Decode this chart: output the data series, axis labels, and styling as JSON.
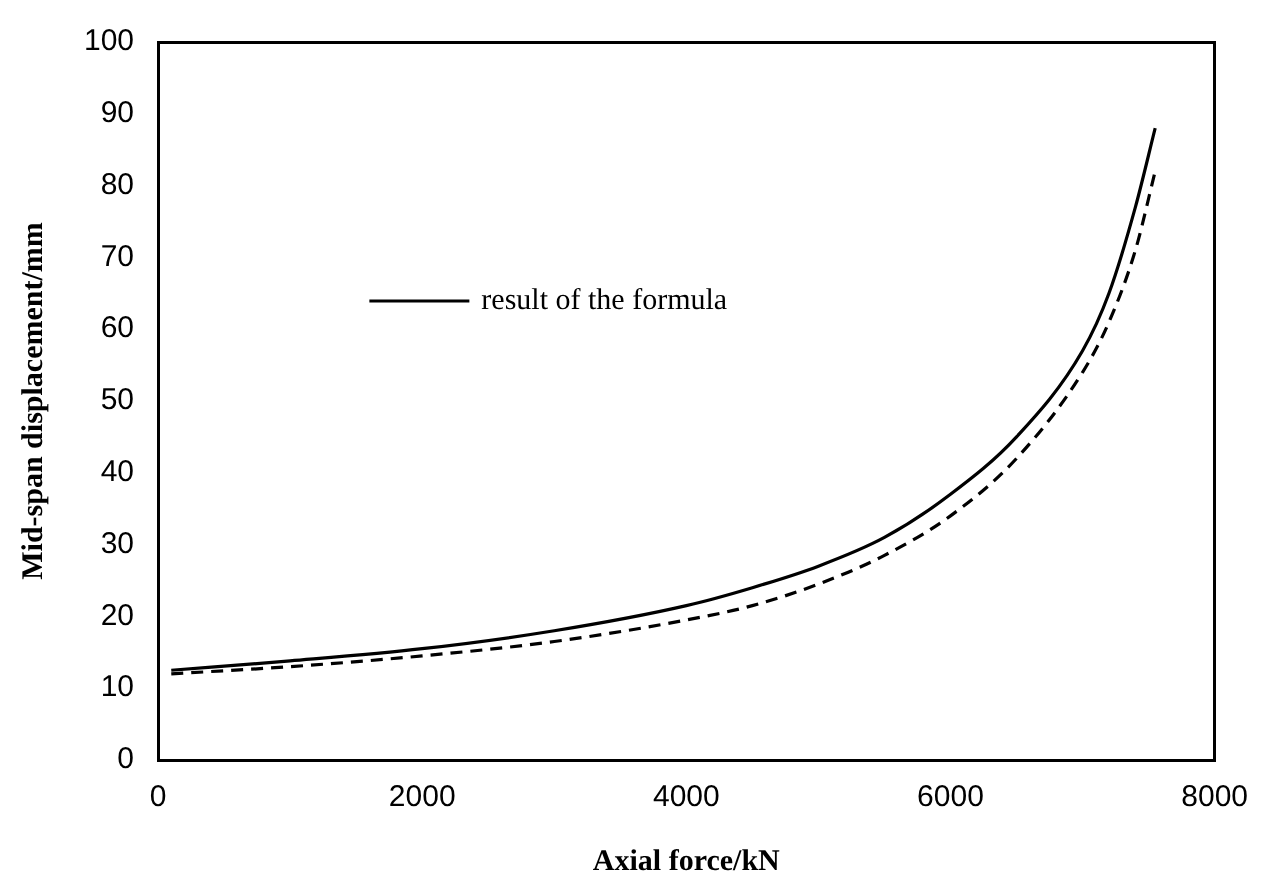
{
  "chart_data": {
    "type": "line",
    "xlabel": "Axial force/kN",
    "ylabel": "Mid-span displacement/mm",
    "xlim": [
      0,
      8000
    ],
    "xticks": [
      0,
      2000,
      4000,
      6000,
      8000
    ],
    "ylim": [
      0,
      100
    ],
    "yticks": [
      0,
      10,
      20,
      30,
      40,
      50,
      60,
      70,
      80,
      90,
      100
    ],
    "grid": false,
    "legend": "left",
    "marker": "none",
    "series": [
      {
        "name": "result of the formula",
        "color": "#000000",
        "line_style": "solid",
        "x": [
          100,
          1000,
          2000,
          3000,
          4000,
          4500,
          5000,
          5500,
          6000,
          6500,
          7000,
          7200,
          7400,
          7550
        ],
        "values": [
          12.5,
          13.8,
          15.5,
          18,
          21.5,
          24,
          27,
          31,
          37,
          45,
          57,
          65,
          77,
          88
        ]
      },
      {
        "color": "#000000",
        "line_style": "dashed",
        "x": [
          100,
          1000,
          2000,
          3000,
          4000,
          4500,
          5000,
          5500,
          6000,
          6500,
          7000,
          7200,
          7400,
          7550
        ],
        "values": [
          12,
          13,
          14.5,
          16.5,
          19.5,
          21.5,
          24.5,
          28.5,
          34,
          42,
          54,
          61,
          71,
          82
        ]
      }
    ]
  }
}
